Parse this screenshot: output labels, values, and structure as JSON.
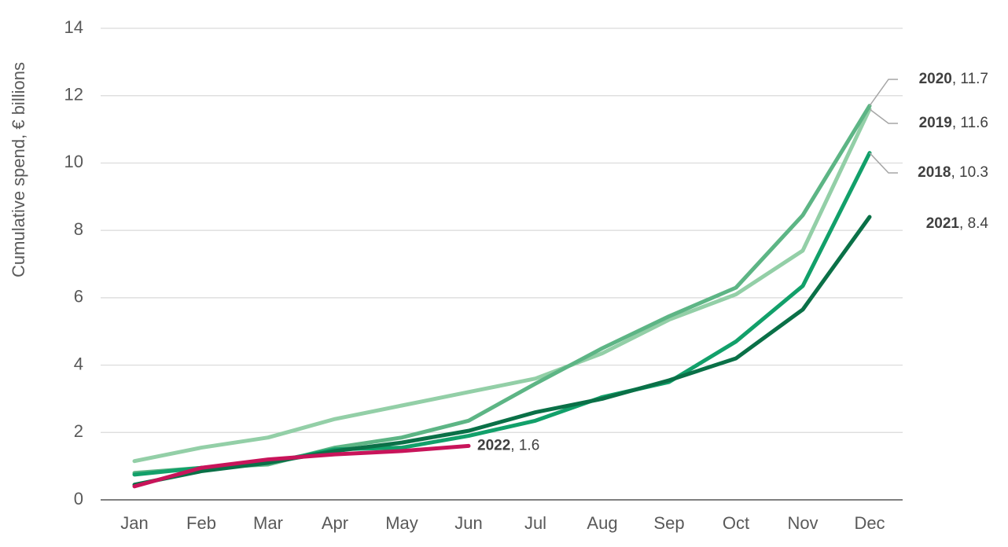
{
  "chart_data": {
    "type": "line",
    "y_label": "Cumulative spend, € billions",
    "categories": [
      "Jan",
      "Feb",
      "Mar",
      "Apr",
      "May",
      "Jun",
      "Jul",
      "Aug",
      "Sep",
      "Oct",
      "Nov",
      "Dec"
    ],
    "series": [
      {
        "name": "2019",
        "color": "#93cfa7",
        "values": [
          1.15,
          1.55,
          1.85,
          2.4,
          2.8,
          3.2,
          3.6,
          4.35,
          5.35,
          6.1,
          7.4,
          11.6
        ]
      },
      {
        "name": "2020",
        "color": "#5db585",
        "values": [
          0.8,
          0.95,
          1.05,
          1.55,
          1.85,
          2.35,
          3.45,
          4.5,
          5.45,
          6.3,
          8.45,
          11.7
        ]
      },
      {
        "name": "2018",
        "color": "#12a06a",
        "values": [
          0.75,
          0.95,
          1.1,
          1.5,
          1.55,
          1.9,
          2.35,
          3.05,
          3.5,
          4.7,
          6.35,
          10.3
        ]
      },
      {
        "name": "2021",
        "color": "#0a7047",
        "values": [
          0.45,
          0.85,
          1.1,
          1.45,
          1.7,
          2.05,
          2.6,
          3.0,
          3.55,
          4.2,
          5.65,
          8.4
        ]
      },
      {
        "name": "2022",
        "color": "#c8145a",
        "values": [
          0.4,
          0.95,
          1.2,
          1.35,
          1.45,
          1.6,
          null,
          null,
          null,
          null,
          null,
          null
        ]
      }
    ],
    "ylim": [
      0,
      14
    ],
    "yticks": [
      0,
      2,
      4,
      6,
      8,
      10,
      12,
      14
    ],
    "grid": true
  }
}
